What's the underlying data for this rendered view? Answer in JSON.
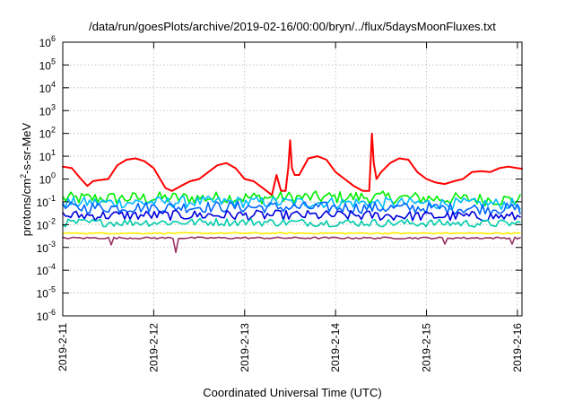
{
  "chart_data": {
    "type": "line",
    "title": "/data/run/goesPlots/archive/2019-02-16/00:00/bryn/../flux/5daysMoonFluxes.txt",
    "xlabel": "Coordinated Universal Time (UTC)",
    "ylabel": {
      "base": "protons/cm",
      "sup": "2",
      "rest": "-s-sr-MeV"
    },
    "y_scale": "log",
    "ylim": [
      1e-06,
      1000000.0
    ],
    "xlim": [
      0,
      5.05
    ],
    "grid": true,
    "legend": "none",
    "x_ticks": [
      {
        "x": 0,
        "label": "2019-2-11"
      },
      {
        "x": 1,
        "label": "2019-2-12"
      },
      {
        "x": 2,
        "label": "2019-2-13"
      },
      {
        "x": 3,
        "label": "2019-2-14"
      },
      {
        "x": 4,
        "label": "2019-2-15"
      },
      {
        "x": 5,
        "label": "2019-2-16"
      }
    ],
    "y_ticks": [
      {
        "value": 1e-06,
        "base": "10",
        "exp": "-6"
      },
      {
        "value": 1e-05,
        "base": "10",
        "exp": "-5"
      },
      {
        "value": 0.0001,
        "base": "10",
        "exp": "-4"
      },
      {
        "value": 0.001,
        "base": "10",
        "exp": "-3"
      },
      {
        "value": 0.01,
        "base": "10",
        "exp": "-2"
      },
      {
        "value": 0.1,
        "base": "10",
        "exp": "-1"
      },
      {
        "value": 1,
        "base": "10",
        "exp": "0"
      },
      {
        "value": 10,
        "base": "10",
        "exp": "1"
      },
      {
        "value": 100,
        "base": "10",
        "exp": "2"
      },
      {
        "value": 1000,
        "base": "10",
        "exp": "3"
      },
      {
        "value": 10000,
        "base": "10",
        "exp": "4"
      },
      {
        "value": 100000,
        "base": "10",
        "exp": "5"
      },
      {
        "value": 1000000,
        "base": "10",
        "exp": "6"
      }
    ],
    "series": [
      {
        "color": "#ff0000",
        "x": [
          0,
          0.1,
          0.2,
          0.27,
          0.33,
          0.4,
          0.5,
          0.6,
          0.7,
          0.8,
          0.9,
          1.0,
          1.07,
          1.13,
          1.2,
          1.3,
          1.4,
          1.5,
          1.6,
          1.7,
          1.8,
          1.9,
          2.0,
          2.1,
          2.2,
          2.3,
          2.35,
          2.4,
          2.45,
          2.48,
          2.5,
          2.52,
          2.55,
          2.6,
          2.7,
          2.8,
          2.9,
          3.0,
          3.1,
          3.2,
          3.3,
          3.37,
          3.4,
          3.42,
          3.45,
          3.5,
          3.6,
          3.7,
          3.8,
          3.9,
          4.0,
          4.1,
          4.2,
          4.3,
          4.4,
          4.5,
          4.6,
          4.7,
          4.8,
          4.9,
          5.0,
          5.05
        ],
        "y": [
          3.5,
          3.0,
          1.0,
          0.5,
          0.8,
          0.9,
          1.0,
          4.0,
          7.0,
          8.0,
          6.0,
          3.0,
          1.0,
          0.4,
          0.3,
          0.5,
          0.8,
          1.0,
          2.0,
          4.0,
          5.0,
          3.0,
          1.0,
          0.8,
          0.4,
          0.2,
          1.5,
          0.3,
          0.3,
          3.0,
          50,
          3.0,
          1.5,
          1.5,
          8.0,
          10.0,
          7.0,
          2.0,
          1.0,
          0.5,
          0.3,
          0.3,
          100,
          5.0,
          1.0,
          2.0,
          5.0,
          8.0,
          7.0,
          2.0,
          1.0,
          0.7,
          0.6,
          0.8,
          1.0,
          2.0,
          2.2,
          2.0,
          3.0,
          3.5,
          3.0,
          2.8
        ]
      },
      {
        "color": "#00ee00",
        "y": [
          0.14,
          0.15,
          0.16,
          0.12
        ],
        "dips": [],
        "amp": 0.55
      },
      {
        "color": "#00bbff",
        "y": [
          0.09,
          0.1,
          0.09,
          0.08
        ],
        "dips": [],
        "amp": 0.5
      },
      {
        "color": "#0066ff",
        "y": [
          0.055,
          0.06,
          0.055,
          0.05
        ],
        "dips": [],
        "amp": 0.5
      },
      {
        "color": "#0000dd",
        "y": [
          0.025,
          0.026,
          0.025,
          0.022
        ],
        "dips": [],
        "amp": 0.45
      },
      {
        "color": "#00ccaa",
        "y": [
          0.012,
          0.013,
          0.012,
          0.011
        ],
        "dips": [],
        "amp": 0.35
      },
      {
        "color": "#ffee00",
        "y": [
          0.0042,
          0.0042,
          0.0042,
          0.0042
        ],
        "dips": [],
        "amp": 0.06
      },
      {
        "color": "#993366",
        "y": [
          0.0026,
          0.0026,
          0.0026,
          0.0026
        ],
        "dips": [
          {
            "x": 0.52,
            "y": 0.0013
          },
          {
            "x": 1.23,
            "y": 0.0006
          },
          {
            "x": 4.2,
            "y": 0.0014
          },
          {
            "x": 4.95,
            "y": 0.0014
          }
        ],
        "amp": 0.08
      }
    ]
  }
}
